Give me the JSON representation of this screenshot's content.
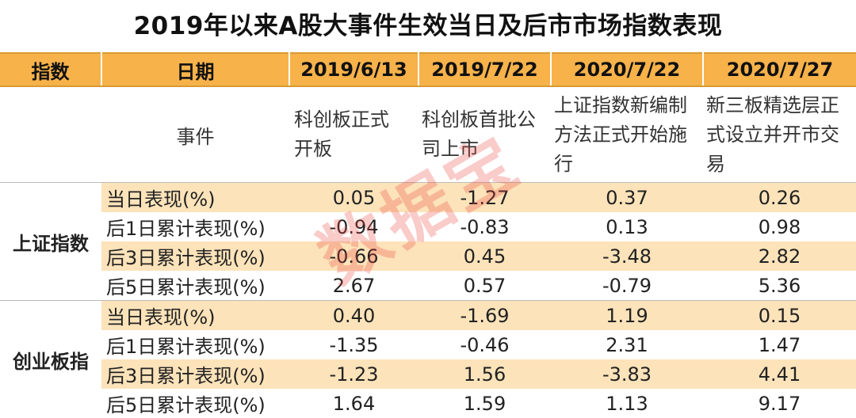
{
  "title": "2019年以来A股大事件生效当日及后市市场指数表现",
  "header": {
    "index_col": "指数",
    "date_col": "日期",
    "dates": [
      "2019/6/13",
      "2019/7/22",
      "2020/7/22",
      "2020/7/27"
    ]
  },
  "event_row": {
    "label": "事件",
    "events": [
      "科创板正式开板",
      "科创板首批公司上市",
      "上证指数新编制方法正式开始施行",
      "新三板精选层正式设立并开市交易"
    ]
  },
  "groups": [
    {
      "name": "上证指数",
      "rows": [
        {
          "metric": "当日表现(%)",
          "values": [
            "0.05",
            "-1.27",
            "0.37",
            "0.26"
          ]
        },
        {
          "metric": "后1日累计表现(%)",
          "values": [
            "-0.94",
            "-0.83",
            "0.13",
            "0.98"
          ]
        },
        {
          "metric": "后3日累计表现(%)",
          "values": [
            "-0.66",
            "0.45",
            "-3.48",
            "2.82"
          ]
        },
        {
          "metric": "后5日累计表现(%)",
          "values": [
            "2.67",
            "0.57",
            "-0.79",
            "5.36"
          ]
        }
      ]
    },
    {
      "name": "创业板指",
      "rows": [
        {
          "metric": "当日表现(%)",
          "values": [
            "0.40",
            "-1.69",
            "1.19",
            "0.15"
          ]
        },
        {
          "metric": "后1日累计表现(%)",
          "values": [
            "-1.35",
            "-0.46",
            "2.31",
            "1.47"
          ]
        },
        {
          "metric": "后3日累计表现(%)",
          "values": [
            "-1.23",
            "1.56",
            "-3.83",
            "4.41"
          ]
        },
        {
          "metric": "后5日累计表现(%)",
          "values": [
            "1.64",
            "1.59",
            "1.13",
            "9.17"
          ]
        }
      ]
    }
  ],
  "watermark": "数据宝",
  "colors": {
    "header_bg": "#f7b24a",
    "shade_bg": "#fce3ba",
    "watermark": "#eb463c"
  }
}
